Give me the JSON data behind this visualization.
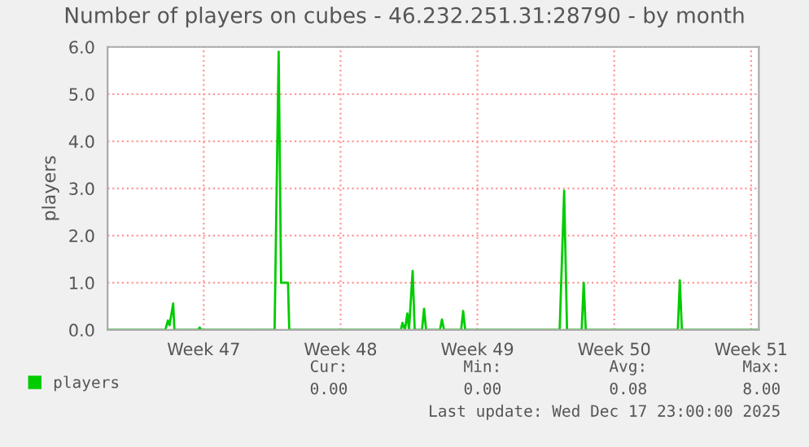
{
  "chart_data": {
    "type": "line",
    "title": "Number of players on cubes - 46.232.251.31:28790 - by month",
    "ylabel": "players",
    "x": [
      "2025-11-12T02:00",
      "2025-11-15T01:00",
      "2025-11-15T04:00",
      "2025-11-15T06:00",
      "2025-11-15T08:00",
      "2025-11-15T10:30",
      "2025-11-15T12:00",
      "2025-11-16T17:00",
      "2025-11-16T19:00",
      "2025-11-16T21:00",
      "2025-11-20T15:00",
      "2025-11-20T20:00",
      "2025-11-20T23:00",
      "2025-11-21T07:30",
      "2025-11-21T09:00",
      "2025-11-27T02:00",
      "2025-11-27T04:00",
      "2025-11-27T07:00",
      "2025-11-27T10:00",
      "2025-11-27T12:00",
      "2025-11-27T16:30",
      "2025-11-27T19:00",
      "2025-11-28T04:00",
      "2025-11-28T06:30",
      "2025-11-28T09:00",
      "2025-11-29T02:00",
      "2025-11-29T04:30",
      "2025-11-29T07:00",
      "2025-11-30T04:00",
      "2025-11-30T06:30",
      "2025-11-30T09:00",
      "2025-12-05T05:00",
      "2025-12-05T10:30",
      "2025-12-05T14:00",
      "2025-12-06T08:00",
      "2025-12-06T10:30",
      "2025-12-06T13:00",
      "2025-12-11T06:00",
      "2025-12-11T08:30",
      "2025-12-11T11:00",
      "2025-12-15T09:30"
    ],
    "series": [
      {
        "name": "players",
        "color": "#00cc00",
        "values": [
          0,
          0,
          0.2,
          0.1,
          0.3,
          0.56,
          0,
          0,
          0.05,
          0,
          0,
          5.9,
          1.0,
          1.0,
          0,
          0,
          0.15,
          0,
          0.35,
          0,
          1.25,
          0,
          0,
          0.45,
          0,
          0,
          0.22,
          0,
          0,
          0.4,
          0,
          0,
          2.95,
          0,
          0,
          1.0,
          0,
          0,
          1.05,
          0,
          0
        ]
      }
    ],
    "xlim": [
      "2025-11-12T02:00",
      "2025-12-15T09:30"
    ],
    "xticks": [
      {
        "value": "2025-11-17",
        "label": "Week 47"
      },
      {
        "value": "2025-11-24",
        "label": "Week 48"
      },
      {
        "value": "2025-12-01",
        "label": "Week 49"
      },
      {
        "value": "2025-12-08",
        "label": "Week 50"
      },
      {
        "value": "2025-12-15",
        "label": "Week 51"
      }
    ],
    "ylim": [
      0,
      6
    ],
    "yticks": [
      {
        "value": 0,
        "label": "0.0"
      },
      {
        "value": 1,
        "label": "1.0"
      },
      {
        "value": 2,
        "label": "2.0"
      },
      {
        "value": 3,
        "label": "3.0"
      },
      {
        "value": 4,
        "label": "4.0"
      },
      {
        "value": 5,
        "label": "5.0"
      },
      {
        "value": 6,
        "label": "6.0"
      }
    ],
    "grid": true,
    "legend": "bottom",
    "marker": "none",
    "line_style": "solid",
    "annotations": [
      "Cur:",
      "0.00",
      "Min:",
      "0.00",
      "Avg:",
      "0.08",
      "Max:",
      "8.00",
      "Last update: Wed Dec 17 23:00:00 2025"
    ]
  }
}
